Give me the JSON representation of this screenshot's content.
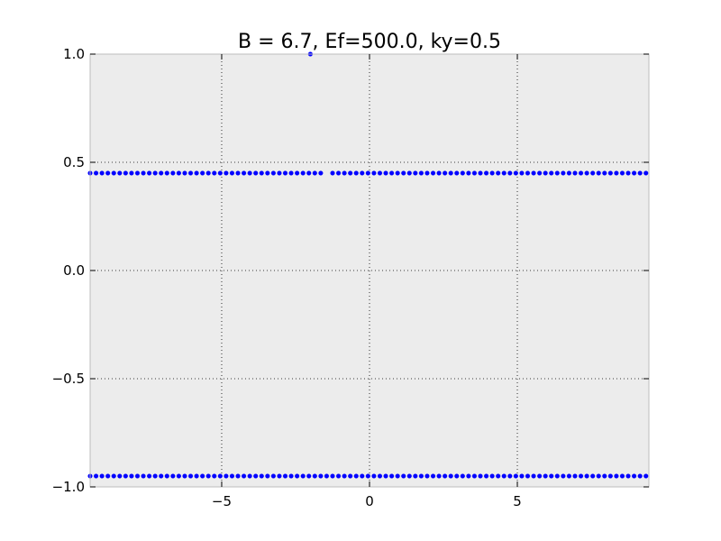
{
  "chart_data": {
    "type": "scatter",
    "title": "B = 6.7, Ef=500.0, ky=0.5",
    "xlabel": "",
    "ylabel": "",
    "xlim": [
      -9.45,
      9.45
    ],
    "ylim": [
      -1.0,
      1.0
    ],
    "x_ticks": [
      -5,
      0,
      5
    ],
    "x_tick_labels": [
      "−5",
      "0",
      "5"
    ],
    "y_ticks": [
      1.0,
      0.5,
      0.0,
      -0.5,
      -1.0
    ],
    "y_tick_labels": [
      "1.0",
      "0.5",
      "0.0",
      "−0.5",
      "−1.0"
    ],
    "grid": true,
    "grid_style": "dotted",
    "background_color": "#ececec",
    "series": [
      {
        "color": "#0000ff",
        "marker": "circle",
        "x_start": -9.45,
        "x_end": 9.45,
        "x_step": 0.2,
        "y": 0.45,
        "gap_x": [
          -1.5,
          -1.3
        ]
      },
      {
        "color": "#0000ff",
        "marker": "circle",
        "x_start": -9.45,
        "x_end": 9.45,
        "x_step": 0.2,
        "y": -0.95
      },
      {
        "color": "#0000ff",
        "marker": "circle",
        "points": [
          [
            -2.0,
            1.0
          ]
        ]
      }
    ]
  }
}
